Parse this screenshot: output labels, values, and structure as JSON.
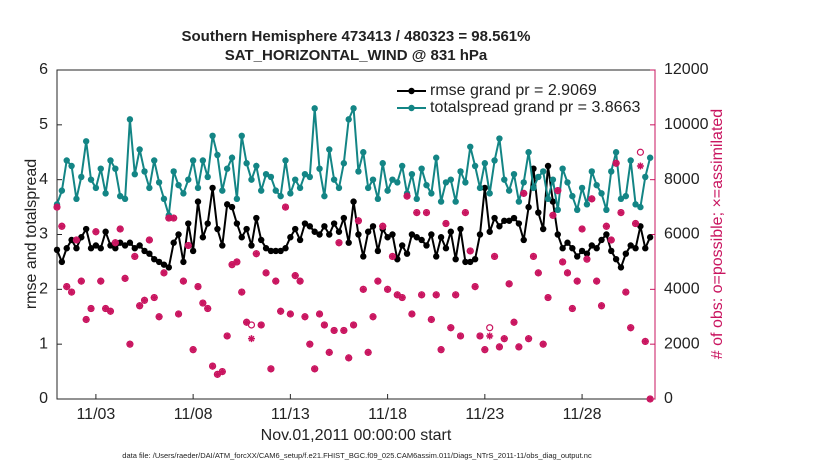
{
  "chart_data": {
    "type": "line",
    "title": "Southern Hemisphere 473413 / 480323 = 98.561%",
    "subtitle": "SAT_HORIZONTAL_WIND @ 831 hPa",
    "xlabel": "Nov.01,2011 00:00:00 start",
    "ylabel": "rmse and totalspread",
    "y2label": "# of obs: o=possible; ×=assimilated",
    "footnote": "data file: /Users/raeder/DAI/ATM_forcXX/CAM6_setup/f.e21.FHIST_BGC.f09_025.CAM6assim.011/Diags_NTrS_2011-11/obs_diag_output.nc",
    "xlim": [
      0,
      30.75
    ],
    "xticks": [
      {
        "value": 2,
        "label": "11/03"
      },
      {
        "value": 7,
        "label": "11/08"
      },
      {
        "value": 12,
        "label": "11/13"
      },
      {
        "value": 17,
        "label": "11/18"
      },
      {
        "value": 22,
        "label": "11/23"
      },
      {
        "value": 27,
        "label": "11/28"
      }
    ],
    "ylim": [
      0,
      6
    ],
    "yticks": [
      0,
      1,
      2,
      3,
      4,
      5,
      6
    ],
    "y2lim": [
      0,
      12000
    ],
    "y2ticks": [
      0,
      2000,
      4000,
      6000,
      8000,
      10000,
      12000
    ],
    "y2color": "#c9145f",
    "legend": "upper right",
    "x": [
      0,
      0.25,
      0.5,
      0.75,
      1,
      1.25,
      1.5,
      1.75,
      2,
      2.25,
      2.5,
      2.75,
      3,
      3.25,
      3.5,
      3.75,
      4,
      4.25,
      4.5,
      4.75,
      5,
      5.25,
      5.5,
      5.75,
      6,
      6.25,
      6.5,
      6.75,
      7,
      7.25,
      7.5,
      7.75,
      8,
      8.25,
      8.5,
      8.75,
      9,
      9.25,
      9.5,
      9.75,
      10,
      10.25,
      10.5,
      10.75,
      11,
      11.25,
      11.5,
      11.75,
      12,
      12.25,
      12.5,
      12.75,
      13,
      13.25,
      13.5,
      13.75,
      14,
      14.25,
      14.5,
      14.75,
      15,
      15.25,
      15.5,
      15.75,
      16,
      16.25,
      16.5,
      16.75,
      17,
      17.25,
      17.5,
      17.75,
      18,
      18.25,
      18.5,
      18.75,
      19,
      19.25,
      19.5,
      19.75,
      20,
      20.25,
      20.5,
      20.75,
      21,
      21.25,
      21.5,
      21.75,
      22,
      22.25,
      22.5,
      22.75,
      23,
      23.25,
      23.5,
      23.75,
      24,
      24.25,
      24.5,
      24.75,
      25,
      25.25,
      25.5,
      25.75,
      26,
      26.25,
      26.5,
      26.75,
      27,
      27.25,
      27.5,
      27.75,
      28,
      28.25,
      28.5,
      28.75,
      29,
      29.25,
      29.5,
      29.75,
      30,
      30.25,
      30.5
    ],
    "series": [
      {
        "name": "rmse grand pr = 2.9069",
        "color": "#000000",
        "marker": "dot",
        "values": [
          2.72,
          2.5,
          2.75,
          2.9,
          2.75,
          2.95,
          3.1,
          2.75,
          2.8,
          2.75,
          3.05,
          2.8,
          2.75,
          2.85,
          2.8,
          2.85,
          2.75,
          2.8,
          2.7,
          2.65,
          2.55,
          2.5,
          2.45,
          2.4,
          2.85,
          3.0,
          2.5,
          3.2,
          2.7,
          3.6,
          2.95,
          3.2,
          3.85,
          3.1,
          2.8,
          3.55,
          3.5,
          3.2,
          2.95,
          3.1,
          2.8,
          3.3,
          2.9,
          2.75,
          2.7,
          2.7,
          2.7,
          2.75,
          2.95,
          3.1,
          2.9,
          3.2,
          3.15,
          3.05,
          3.0,
          3.15,
          3.0,
          3.2,
          3.05,
          3.3,
          2.85,
          3.6,
          3.0,
          2.6,
          3.05,
          3.15,
          2.7,
          3.1,
          2.95,
          3.0,
          2.55,
          2.8,
          2.65,
          3.0,
          2.95,
          2.9,
          2.8,
          3.0,
          2.6,
          2.95,
          2.75,
          3.05,
          2.55,
          3.1,
          2.5,
          2.5,
          2.55,
          3.0,
          3.85,
          3.05,
          3.3,
          3.15,
          3.25,
          3.25,
          3.3,
          3.2,
          2.9,
          3.5,
          4.2,
          3.4,
          3.1,
          4.25,
          3.6,
          3.0,
          2.75,
          2.85,
          2.75,
          2.6,
          2.7,
          2.65,
          2.8,
          2.75,
          2.9,
          3.0,
          2.7,
          2.55,
          2.4,
          2.65,
          2.8,
          2.75,
          3.15,
          2.75,
          2.95
        ]
      },
      {
        "name": "totalspread grand pr = 3.8663",
        "color": "#138585",
        "marker": "dot",
        "values": [
          3.55,
          3.8,
          4.35,
          4.25,
          3.65,
          4.05,
          4.7,
          4.0,
          3.85,
          4.2,
          3.75,
          4.35,
          4.2,
          3.7,
          3.65,
          5.1,
          4.1,
          4.55,
          4.15,
          3.85,
          4.35,
          3.95,
          3.65,
          3.35,
          4.15,
          3.9,
          3.75,
          4.0,
          4.35,
          3.85,
          4.35,
          4.05,
          4.8,
          4.45,
          3.8,
          4.2,
          4.4,
          3.65,
          4.8,
          4.3,
          4.0,
          4.25,
          3.8,
          4.1,
          4.05,
          3.8,
          3.7,
          4.35,
          3.75,
          4.0,
          3.85,
          4.1,
          4.05,
          5.3,
          4.2,
          3.7,
          4.55,
          4.0,
          3.85,
          4.3,
          5.1,
          5.3,
          4.15,
          4.5,
          3.85,
          4.0,
          3.65,
          4.3,
          3.8,
          4.0,
          3.95,
          4.25,
          3.75,
          4.1,
          3.65,
          4.2,
          3.9,
          3.75,
          4.4,
          3.6,
          3.95,
          4.0,
          3.6,
          4.15,
          3.95,
          4.6,
          4.25,
          3.85,
          4.3,
          3.75,
          4.35,
          4.75,
          4.0,
          3.8,
          4.1,
          3.6,
          3.95,
          4.5,
          3.85,
          4.05,
          4.15,
          3.65,
          4.0,
          3.45,
          4.2,
          3.95,
          3.7,
          3.45,
          3.85,
          3.55,
          4.15,
          3.9,
          3.75,
          3.45,
          4.15,
          4.5,
          3.65,
          3.7,
          4.35,
          3.55,
          3.5,
          4.05,
          4.4
        ]
      },
      {
        "color": "#c9145f",
        "marker": "circle",
        "axis": "y2",
        "values": [
          7000,
          6300,
          4100,
          3900,
          5800,
          4300,
          2900,
          3300,
          6100,
          4300,
          3300,
          3200,
          5700,
          6200,
          4400,
          2000,
          5200,
          3400,
          3600,
          5800,
          3700,
          3000,
          4600,
          6600,
          6600,
          3100,
          4300,
          5600,
          1800,
          4100,
          3500,
          3300,
          1200,
          900,
          1000,
          2300,
          4900,
          5000,
          3900,
          2800,
          2700,
          5300,
          2700,
          4600,
          1100,
          4300,
          3200,
          7000,
          3100,
          4500,
          4300,
          3000,
          2000,
          1100,
          3100,
          2700,
          1700,
          2500,
          5700,
          2500,
          1500,
          2700,
          6500,
          4000,
          1700,
          3000,
          4300,
          6300,
          4000,
          5200,
          3800,
          3700,
          7400,
          3100,
          6800,
          3800,
          6800,
          2900,
          3800,
          1800,
          6400,
          2600,
          3800,
          2300,
          6800,
          5400,
          4100,
          2300,
          1800,
          2600,
          5200,
          1900,
          2200,
          4200,
          2800,
          1900,
          7500,
          2200,
          5200,
          4600,
          2000,
          3700,
          6700,
          7600,
          5000,
          4600,
          3300,
          4300,
          6200,
          5100,
          7300,
          4300,
          3400,
          6300,
          5800,
          8600,
          6800,
          3900,
          2600,
          6400,
          9000,
          2100,
          0
        ]
      },
      {
        "color": "#c9145f",
        "marker": "asterisk",
        "axis": "y2",
        "values": [
          7000,
          6300,
          4100,
          3900,
          5800,
          4300,
          2900,
          3300,
          6100,
          4300,
          3300,
          3200,
          5700,
          6200,
          4400,
          2000,
          5200,
          3400,
          3600,
          5800,
          3700,
          3000,
          4600,
          6600,
          6600,
          3100,
          4300,
          5600,
          1800,
          4100,
          3500,
          3300,
          1200,
          900,
          1000,
          2300,
          4900,
          5000,
          3900,
          2800,
          2200,
          5300,
          2700,
          4600,
          1100,
          4300,
          3200,
          7000,
          3100,
          4500,
          4300,
          3000,
          2000,
          1100,
          3100,
          2700,
          1700,
          2500,
          5700,
          2500,
          1500,
          2700,
          6500,
          4000,
          1700,
          3000,
          4300,
          6300,
          4000,
          5200,
          3800,
          3700,
          7400,
          3100,
          6800,
          3800,
          6800,
          2900,
          3800,
          1800,
          6400,
          2600,
          3800,
          2300,
          6800,
          5400,
          4100,
          2300,
          1800,
          2300,
          5200,
          1900,
          2200,
          4200,
          2800,
          1900,
          7500,
          2200,
          5200,
          4600,
          2000,
          3700,
          6700,
          7600,
          5000,
          4600,
          3300,
          4300,
          6200,
          5100,
          7300,
          4300,
          3400,
          6300,
          5800,
          8600,
          6800,
          3900,
          2600,
          6400,
          8500,
          2100,
          0
        ]
      }
    ]
  }
}
